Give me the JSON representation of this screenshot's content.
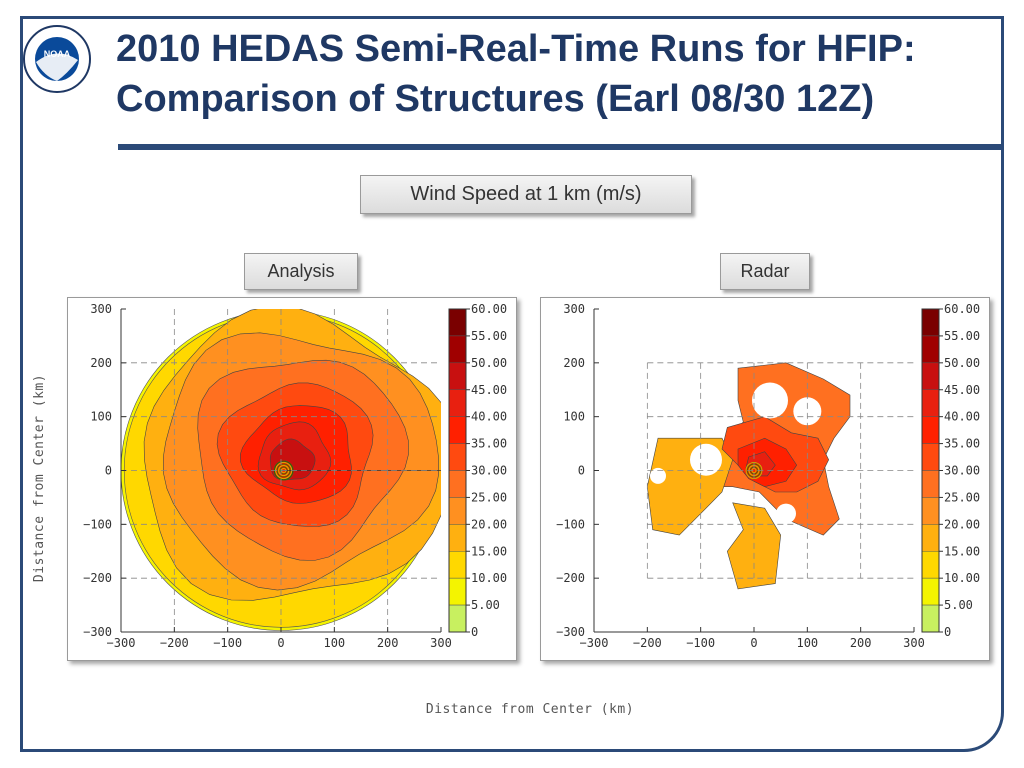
{
  "slide": {
    "title_line1": "2010 HEDAS Semi-Real-Time Runs for HFIP:",
    "title_line2": "Comparison of Structures (Earl 08/30 12Z)",
    "logo_text": "NOAA",
    "main_label": "Wind Speed at 1 km (m/s)",
    "panel_labels": [
      "Analysis",
      "Radar"
    ],
    "xlabel": "Distance from Center (km)",
    "ylabel": "Distance from Center (km)"
  },
  "colors": {
    "frame": "#2b4a78",
    "title": "#1f3864"
  },
  "chart_data": [
    {
      "type": "heatmap",
      "name": "Analysis",
      "xlim": [
        -300,
        300
      ],
      "ylim": [
        -300,
        300
      ],
      "xticks": [
        "−300",
        "−200",
        "−100",
        "0",
        "100",
        "200",
        "300"
      ],
      "yticks": [
        "300",
        "200",
        "100",
        "0",
        "−100",
        "−200",
        "−300"
      ],
      "grid": true,
      "colorbar": {
        "levels": [
          "60.00",
          "55.00",
          "50.00",
          "45.00",
          "40.00",
          "35.00",
          "30.00",
          "25.00",
          "20.00",
          "15.00",
          "10.00",
          "5.00",
          "0"
        ],
        "colors": [
          "#7a0000",
          "#a00000",
          "#c81010",
          "#e82010",
          "#ff2000",
          "#ff4a10",
          "#ff7020",
          "#ff9020",
          "#ffb010",
          "#ffd800",
          "#f4f400",
          "#c8f060",
          "#ffffff"
        ]
      },
      "domain_radius_km": 300,
      "max_wind_center_km": [
        30,
        20
      ]
    },
    {
      "type": "heatmap",
      "name": "Radar",
      "xlim": [
        -300,
        300
      ],
      "ylim": [
        -300,
        300
      ],
      "xticks": [
        "−300",
        "−200",
        "−100",
        "0",
        "100",
        "200",
        "300"
      ],
      "yticks": [
        "300",
        "200",
        "100",
        "0",
        "−100",
        "−200",
        "−300"
      ],
      "grid": true,
      "colorbar": {
        "levels": [
          "60.00",
          "55.00",
          "50.00",
          "45.00",
          "40.00",
          "35.00",
          "30.00",
          "25.00",
          "20.00",
          "15.00",
          "10.00",
          "5.00",
          "0"
        ],
        "colors": [
          "#7a0000",
          "#a00000",
          "#c81010",
          "#e82010",
          "#ff2000",
          "#ff4a10",
          "#ff7020",
          "#ff9020",
          "#ffb010",
          "#ffd800",
          "#f4f400",
          "#c8f060",
          "#ffffff"
        ]
      },
      "max_wind_center_km": [
        20,
        10
      ]
    }
  ]
}
